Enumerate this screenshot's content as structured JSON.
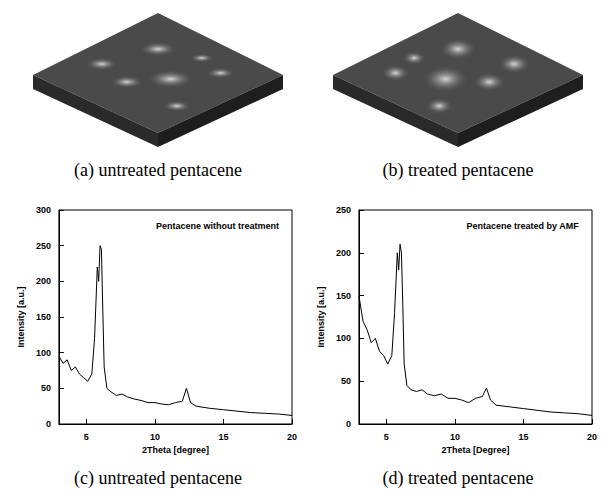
{
  "images": [
    {
      "caption": "(a) untreated pentacene"
    },
    {
      "caption": "(b) treated pentacene"
    }
  ],
  "chart_data": [
    {
      "type": "line",
      "caption": "(c) untreated pentacene",
      "title": "Pentacene without treatment",
      "x_label": "2Theta [degree]",
      "y_label": "Intensity [a.u.]",
      "x": [
        3.0,
        3.3,
        3.6,
        3.9,
        4.2,
        4.5,
        4.8,
        5.1,
        5.4,
        5.6,
        5.8,
        5.9,
        6.0,
        6.1,
        6.2,
        6.3,
        6.5,
        6.8,
        7.2,
        7.6,
        8.0,
        8.5,
        9.0,
        9.5,
        10.0,
        10.5,
        11.0,
        11.5,
        12.0,
        12.3,
        12.6,
        13.0,
        14.0,
        15.0,
        16.0,
        17.0,
        18.0,
        19.0,
        20.0
      ],
      "values": [
        95,
        85,
        90,
        75,
        80,
        70,
        65,
        60,
        70,
        120,
        220,
        200,
        250,
        245,
        160,
        80,
        50,
        45,
        40,
        42,
        38,
        35,
        33,
        30,
        30,
        28,
        27,
        30,
        32,
        50,
        30,
        25,
        22,
        20,
        18,
        16,
        15,
        14,
        12
      ],
      "color": "#000000",
      "xlim": [
        3,
        20
      ],
      "xticks": [
        5,
        10,
        15,
        20
      ],
      "ylim": [
        0,
        300
      ],
      "yticks": [
        0,
        50,
        100,
        150,
        200,
        250,
        300
      ],
      "grid": false
    },
    {
      "type": "line",
      "caption": "(d) treated pentacene",
      "title": "Pentacene treated by AMF",
      "x_label": "2Theta [Degree]",
      "y_label": "Intensity [a.u.]",
      "x": [
        3.0,
        3.3,
        3.6,
        3.9,
        4.2,
        4.5,
        4.8,
        5.1,
        5.4,
        5.6,
        5.8,
        5.9,
        6.0,
        6.1,
        6.2,
        6.3,
        6.5,
        6.8,
        7.2,
        7.6,
        8.0,
        8.5,
        9.0,
        9.5,
        10.0,
        10.5,
        11.0,
        11.5,
        12.0,
        12.3,
        12.6,
        13.0,
        14.0,
        15.0,
        16.0,
        17.0,
        18.0,
        19.0,
        20.0
      ],
      "values": [
        150,
        120,
        110,
        95,
        100,
        85,
        80,
        70,
        80,
        130,
        200,
        180,
        210,
        200,
        140,
        70,
        45,
        40,
        38,
        40,
        35,
        33,
        35,
        30,
        30,
        28,
        25,
        30,
        32,
        42,
        28,
        22,
        20,
        18,
        16,
        14,
        13,
        12,
        10
      ],
      "color": "#000000",
      "xlim": [
        3,
        20
      ],
      "xticks": [
        5,
        10,
        15,
        20
      ],
      "ylim": [
        0,
        250
      ],
      "yticks": [
        0,
        50,
        100,
        150,
        200,
        250
      ],
      "grid": false
    }
  ]
}
